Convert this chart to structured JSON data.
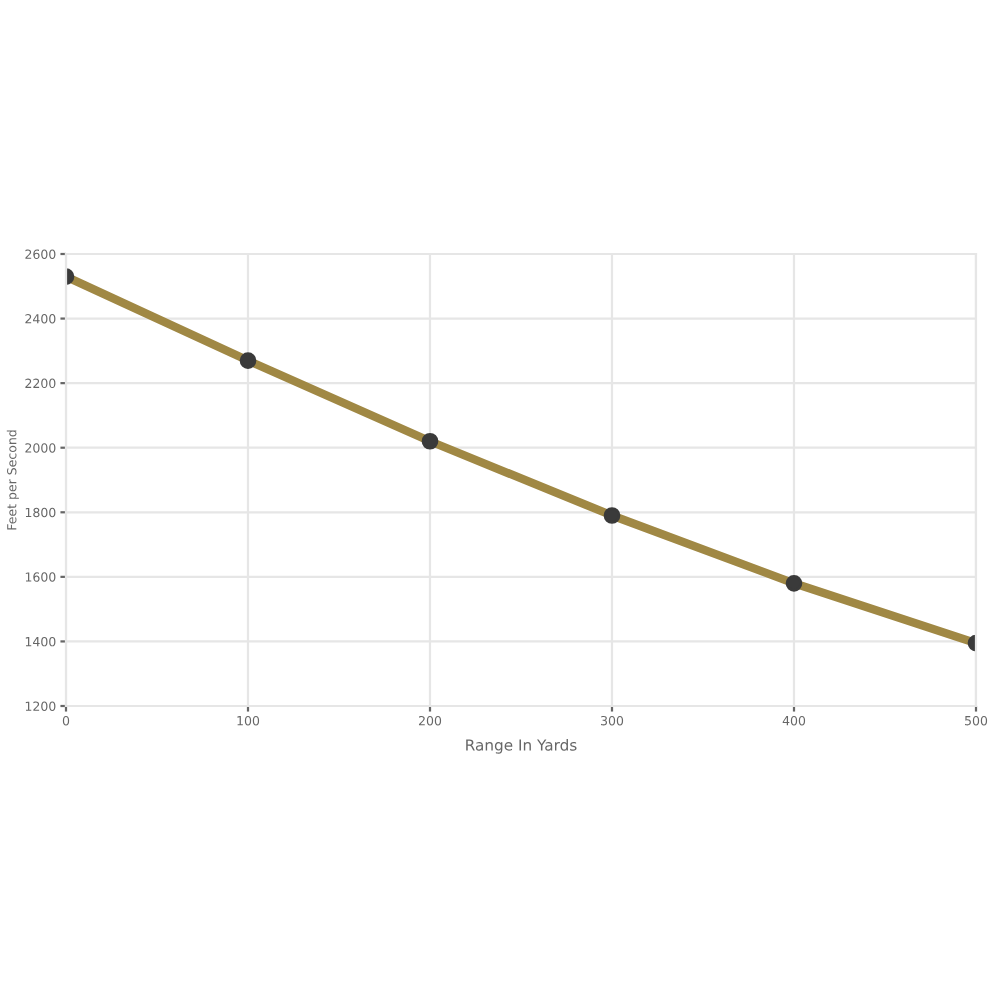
{
  "chart_data": {
    "type": "line",
    "xlabel": "Range In Yards",
    "ylabel": "Feet per Second",
    "x": [
      0,
      100,
      200,
      300,
      400,
      500
    ],
    "series": [
      {
        "color": "#a08844",
        "values": [
          2530,
          2270,
          2020,
          1790,
          1580,
          1395
        ]
      }
    ],
    "marker": "circle",
    "line_style": "solid",
    "grid": true,
    "legend": false,
    "xlim": [
      0,
      500
    ],
    "xticks": [
      0,
      100,
      200,
      300,
      400,
      500
    ],
    "ylim": [
      1200,
      2600
    ],
    "yticks": [
      1200,
      1400,
      1600,
      1800,
      2000,
      2200,
      2400,
      2600
    ]
  }
}
